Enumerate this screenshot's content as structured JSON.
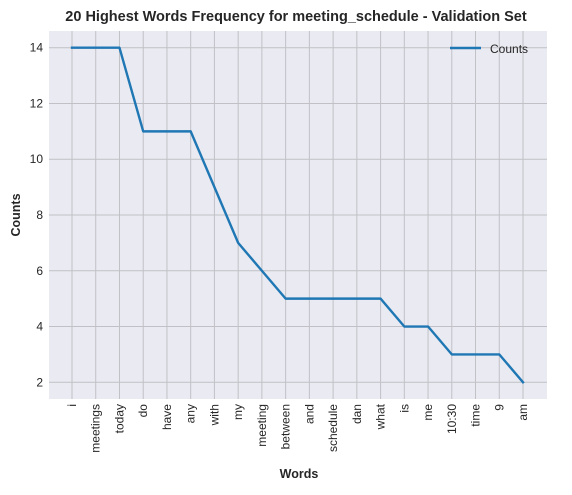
{
  "chart_data": {
    "type": "line",
    "title": "20 Highest Words Frequency for meeting_schedule - Validation Set",
    "xlabel": "Words",
    "ylabel": "Counts",
    "categories": [
      "i",
      "meetings",
      "today",
      "do",
      "have",
      "any",
      "with",
      "my",
      "meeting",
      "between",
      "and",
      "schedule",
      "dan",
      "what",
      "is",
      "me",
      "10:30",
      "time",
      "9",
      "am"
    ],
    "series": [
      {
        "name": "Counts",
        "values": [
          14,
          14,
          14,
          11,
          11,
          11,
          9,
          7,
          6,
          5,
          5,
          5,
          5,
          5,
          4,
          4,
          3,
          3,
          3,
          2
        ],
        "color": "#1f77b4"
      }
    ],
    "yticks": [
      2,
      4,
      6,
      8,
      10,
      12,
      14
    ],
    "ylim": [
      1.4,
      14.6
    ],
    "grid": true,
    "legend_position": "top-right",
    "background_color": "#eaeaf2",
    "grid_color": "#c0c0c6"
  }
}
